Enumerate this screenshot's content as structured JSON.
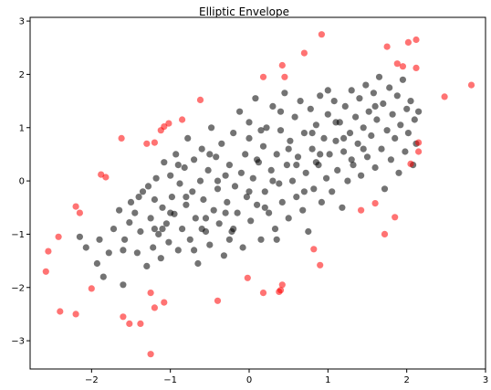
{
  "chart_data": {
    "type": "scatter",
    "title": "Elliptic Envelope",
    "xlabel": "",
    "ylabel": "",
    "xlim": [
      -2.78,
      3.0
    ],
    "ylim": [
      -3.53,
      3.07
    ],
    "x_ticks": [
      -2,
      -1,
      0,
      1,
      2,
      3
    ],
    "y_ticks": [
      -3,
      -2,
      -1,
      0,
      1,
      2,
      3
    ],
    "x_tick_labels": [
      "−2",
      "−1",
      "0",
      "1",
      "2",
      "3"
    ],
    "y_tick_labels": [
      "−3",
      "−2",
      "−1",
      "0",
      "1",
      "2",
      "3"
    ],
    "grid": false,
    "inlier_color": "#000000",
    "outlier_color": "#ff0000",
    "point_alpha": 0.55,
    "series": [
      {
        "role": "inliers",
        "color": "#000000",
        "points": [
          [
            -2.15,
            -1.05
          ],
          [
            -2.07,
            -1.25
          ],
          [
            -1.93,
            -1.55
          ],
          [
            -1.85,
            -1.8
          ],
          [
            -1.9,
            -1.1
          ],
          [
            -1.78,
            -1.35
          ],
          [
            -1.72,
            -0.9
          ],
          [
            -1.65,
            -0.55
          ],
          [
            -1.6,
            -1.95
          ],
          [
            -1.58,
            -1.1
          ],
          [
            -1.52,
            -0.78
          ],
          [
            -1.5,
            -0.4
          ],
          [
            -1.45,
            -0.6
          ],
          [
            -1.42,
            -1.35
          ],
          [
            -1.38,
            -0.95
          ],
          [
            -1.35,
            -0.2
          ],
          [
            -1.3,
            -1.6
          ],
          [
            -1.28,
            -0.1
          ],
          [
            -1.25,
            -0.7
          ],
          [
            -1.22,
            -1.25
          ],
          [
            -1.2,
            -0.35
          ],
          [
            -1.18,
            0.05
          ],
          [
            -1.15,
            -1.0
          ],
          [
            -1.12,
            -1.45
          ],
          [
            -1.1,
            -0.5
          ],
          [
            -1.08,
            0.35
          ],
          [
            -1.05,
            -0.8
          ],
          [
            -1.02,
            -1.15
          ],
          [
            -1.0,
            0.1
          ],
          [
            -0.98,
            -0.3
          ],
          [
            -0.95,
            -0.62
          ],
          [
            -0.93,
            0.5
          ],
          [
            -0.9,
            -1.3
          ],
          [
            -0.88,
            -0.05
          ],
          [
            -0.85,
            -0.9
          ],
          [
            -0.82,
            0.25
          ],
          [
            -0.8,
            -0.45
          ],
          [
            -0.78,
            0.8
          ],
          [
            -0.75,
            -1.1
          ],
          [
            -0.72,
            -0.2
          ],
          [
            -0.7,
            0.4
          ],
          [
            -0.68,
            -0.7
          ],
          [
            -0.65,
            -1.55
          ],
          [
            -0.62,
            0.0
          ],
          [
            -0.6,
            0.6
          ],
          [
            -0.58,
            -0.35
          ],
          [
            -0.55,
            -0.95
          ],
          [
            -0.52,
            0.2
          ],
          [
            -0.5,
            -1.2
          ],
          [
            -0.48,
            1.0
          ],
          [
            -0.45,
            -0.55
          ],
          [
            -0.42,
            0.45
          ],
          [
            -0.4,
            -0.15
          ],
          [
            -0.38,
            -0.8
          ],
          [
            -0.35,
            0.7
          ],
          [
            -0.32,
            -1.4
          ],
          [
            -0.3,
            0.1
          ],
          [
            -0.28,
            -0.4
          ],
          [
            -0.25,
            0.3
          ],
          [
            -0.22,
            -0.95
          ],
          [
            -0.2,
            0.9
          ],
          [
            -0.18,
            -0.1
          ],
          [
            -0.15,
            -0.6
          ],
          [
            -0.12,
            1.3
          ],
          [
            -0.1,
            0.15
          ],
          [
            -0.08,
            -1.25
          ],
          [
            -0.05,
            0.5
          ],
          [
            -0.03,
            -0.3
          ],
          [
            0.0,
            0.8
          ],
          [
            0.02,
            -0.75
          ],
          [
            0.05,
            0.05
          ],
          [
            0.08,
            1.55
          ],
          [
            0.1,
            -0.45
          ],
          [
            0.12,
            0.35
          ],
          [
            0.15,
            -1.1
          ],
          [
            0.18,
            0.65
          ],
          [
            0.2,
            -0.2
          ],
          [
            0.22,
            1.0
          ],
          [
            0.25,
            -0.6
          ],
          [
            0.28,
            0.2
          ],
          [
            0.3,
            1.4
          ],
          [
            0.33,
            -0.9
          ],
          [
            0.35,
            0.5
          ],
          [
            0.38,
            -0.05
          ],
          [
            0.4,
            0.95
          ],
          [
            0.42,
            -0.4
          ],
          [
            0.45,
            1.65
          ],
          [
            0.48,
            0.3
          ],
          [
            0.5,
            -0.7
          ],
          [
            0.52,
            0.75
          ],
          [
            0.55,
            0.0
          ],
          [
            0.58,
            1.2
          ],
          [
            0.6,
            -0.3
          ],
          [
            0.62,
            0.45
          ],
          [
            0.65,
            1.5
          ],
          [
            0.68,
            -0.55
          ],
          [
            0.7,
            0.9
          ],
          [
            0.72,
            0.15
          ],
          [
            0.75,
            -0.95
          ],
          [
            0.78,
            1.35
          ],
          [
            0.8,
            0.6
          ],
          [
            0.82,
            -0.15
          ],
          [
            0.85,
            1.05
          ],
          [
            0.88,
            0.3
          ],
          [
            0.9,
            1.6
          ],
          [
            0.92,
            -0.4
          ],
          [
            0.95,
            0.8
          ],
          [
            0.98,
            0.05
          ],
          [
            1.0,
            1.25
          ],
          [
            1.02,
            0.5
          ],
          [
            1.05,
            -0.2
          ],
          [
            1.08,
            1.5
          ],
          [
            1.1,
            0.75
          ],
          [
            1.12,
            0.2
          ],
          [
            1.15,
            1.1
          ],
          [
            1.18,
            -0.5
          ],
          [
            1.2,
            0.55
          ],
          [
            1.22,
            1.4
          ],
          [
            1.25,
            0.0
          ],
          [
            1.28,
            0.9
          ],
          [
            1.3,
            1.7
          ],
          [
            1.32,
            0.3
          ],
          [
            1.35,
            1.2
          ],
          [
            1.38,
            0.7
          ],
          [
            1.4,
            1.55
          ],
          [
            1.42,
            0.1
          ],
          [
            1.45,
            1.0
          ],
          [
            1.48,
            1.8
          ],
          [
            1.5,
            0.45
          ],
          [
            1.52,
            1.3
          ],
          [
            1.55,
            0.85
          ],
          [
            1.58,
            1.65
          ],
          [
            1.6,
            0.25
          ],
          [
            1.62,
            1.15
          ],
          [
            1.65,
            1.95
          ],
          [
            1.68,
            0.6
          ],
          [
            1.7,
            1.45
          ],
          [
            1.72,
            -0.15
          ],
          [
            1.75,
            0.95
          ],
          [
            1.78,
            1.75
          ],
          [
            1.8,
            0.4
          ],
          [
            1.82,
            1.25
          ],
          [
            1.85,
            0.8
          ],
          [
            1.88,
            1.6
          ],
          [
            1.9,
            0.15
          ],
          [
            1.92,
            1.05
          ],
          [
            1.95,
            1.9
          ],
          [
            1.98,
            0.55
          ],
          [
            2.0,
            1.35
          ],
          [
            2.02,
            0.9
          ],
          [
            2.05,
            1.5
          ],
          [
            2.08,
            0.3
          ],
          [
            2.1,
            1.15
          ],
          [
            2.12,
            0.7
          ],
          [
            2.15,
            1.3
          ],
          [
            -1.0,
            -0.6
          ],
          [
            -0.6,
            -0.9
          ],
          [
            -0.3,
            -0.6
          ],
          [
            0.0,
            -0.2
          ],
          [
            0.3,
            0.0
          ],
          [
            0.6,
            0.3
          ],
          [
            0.9,
            0.5
          ],
          [
            1.2,
            0.8
          ],
          [
            -0.8,
            -0.3
          ],
          [
            -0.4,
            0.0
          ],
          [
            0.1,
            0.4
          ],
          [
            0.5,
            0.6
          ],
          [
            0.8,
            0.9
          ],
          [
            1.1,
            1.1
          ],
          [
            -1.2,
            -0.9
          ],
          [
            -0.7,
            -1.3
          ],
          [
            -0.2,
            -0.9
          ],
          [
            0.2,
            -0.5
          ],
          [
            0.7,
            -0.2
          ],
          [
            1.3,
            0.4
          ],
          [
            -1.4,
            -0.3
          ],
          [
            -0.9,
            0.3
          ],
          [
            -0.5,
            0.5
          ],
          [
            0.0,
            1.1
          ],
          [
            0.4,
            1.3
          ],
          [
            1.0,
            1.7
          ],
          [
            1.6,
            1.4
          ],
          [
            -1.6,
            -1.3
          ],
          [
            -1.1,
            -0.9
          ],
          [
            -0.55,
            -0.7
          ],
          [
            0.15,
            0.95
          ],
          [
            0.85,
            0.35
          ],
          [
            1.45,
            0.6
          ],
          [
            -0.25,
            -1.1
          ],
          [
            0.35,
            -1.1
          ]
        ]
      },
      {
        "role": "outliers",
        "color": "#ff0000",
        "points": [
          [
            -2.58,
            -1.7
          ],
          [
            -2.55,
            -1.32
          ],
          [
            -2.42,
            -1.05
          ],
          [
            -2.4,
            -2.45
          ],
          [
            -2.2,
            -0.48
          ],
          [
            -2.15,
            -0.6
          ],
          [
            -2.2,
            -2.5
          ],
          [
            -2.0,
            -2.02
          ],
          [
            -1.88,
            0.12
          ],
          [
            -1.82,
            0.07
          ],
          [
            -1.62,
            0.8
          ],
          [
            -1.6,
            -2.55
          ],
          [
            -1.52,
            -2.68
          ],
          [
            -1.38,
            -2.68
          ],
          [
            -1.3,
            0.7
          ],
          [
            -1.25,
            -2.1
          ],
          [
            -1.25,
            -3.25
          ],
          [
            -1.2,
            -2.38
          ],
          [
            -1.2,
            0.72
          ],
          [
            -1.12,
            0.95
          ],
          [
            -1.08,
            1.02
          ],
          [
            -1.08,
            -2.28
          ],
          [
            -1.02,
            1.08
          ],
          [
            -0.85,
            1.15
          ],
          [
            -0.62,
            1.52
          ],
          [
            -0.4,
            -2.25
          ],
          [
            -0.02,
            -1.82
          ],
          [
            0.18,
            -2.1
          ],
          [
            0.18,
            1.95
          ],
          [
            0.38,
            -2.08
          ],
          [
            0.4,
            -2.05
          ],
          [
            0.42,
            -1.95
          ],
          [
            0.42,
            2.17
          ],
          [
            0.45,
            1.95
          ],
          [
            0.7,
            2.4
          ],
          [
            0.82,
            -1.28
          ],
          [
            0.9,
            -1.58
          ],
          [
            0.92,
            2.75
          ],
          [
            1.42,
            -0.55
          ],
          [
            1.6,
            -0.42
          ],
          [
            1.72,
            -1.0
          ],
          [
            1.75,
            2.52
          ],
          [
            1.85,
            -0.68
          ],
          [
            1.88,
            2.2
          ],
          [
            1.95,
            2.15
          ],
          [
            2.02,
            2.6
          ],
          [
            2.05,
            0.32
          ],
          [
            2.12,
            2.65
          ],
          [
            2.12,
            2.12
          ],
          [
            2.15,
            0.72
          ],
          [
            2.15,
            0.55
          ],
          [
            2.48,
            1.58
          ],
          [
            2.82,
            1.8
          ]
        ]
      }
    ]
  }
}
